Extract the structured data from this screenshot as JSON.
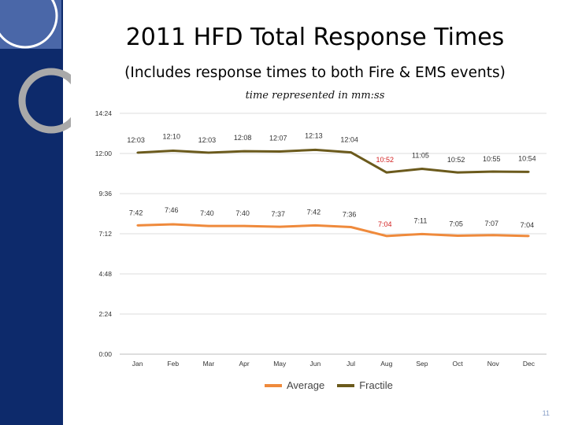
{
  "slide": {
    "title": "2011 HFD Total Response Times",
    "subtitle": "(Includes response times to both Fire & EMS events)",
    "page_number": "11"
  },
  "colors": {
    "sidebar": "#0d2a6b",
    "average": "#ef8a3c",
    "fractile": "#6b5a1c",
    "highlight_label": "#d21f1f",
    "grid": "#dcdcdc"
  },
  "chart_data": {
    "type": "line",
    "title": "time represented in mm:ss",
    "categories": [
      "Jan",
      "Feb",
      "Mar",
      "Apr",
      "May",
      "Jun",
      "Jul",
      "Aug",
      "Sep",
      "Oct",
      "Nov",
      "Dec"
    ],
    "y_tick_labels": [
      "0:00",
      "2:24",
      "4:48",
      "7:12",
      "9:36",
      "12:00",
      "14:24"
    ],
    "ylim_seconds": [
      0,
      864
    ],
    "grid": true,
    "legend_position": "bottom",
    "highlight_index": 7,
    "series": [
      {
        "name": "Average",
        "labels": [
          "7:42",
          "7:46",
          "7:40",
          "7:40",
          "7:37",
          "7:42",
          "7:36",
          "7:04",
          "7:11",
          "7:05",
          "7:07",
          "7:04"
        ],
        "values_seconds": [
          462,
          466,
          460,
          460,
          457,
          462,
          456,
          424,
          431,
          425,
          427,
          424
        ]
      },
      {
        "name": "Fractile",
        "labels": [
          "12:03",
          "12:10",
          "12:03",
          "12:08",
          "12:07",
          "12:13",
          "12:04",
          "10:52",
          "11:05",
          "10:52",
          "10:55",
          "10:54"
        ],
        "values_seconds": [
          723,
          730,
          723,
          728,
          727,
          733,
          724,
          652,
          665,
          652,
          655,
          654
        ]
      }
    ]
  }
}
